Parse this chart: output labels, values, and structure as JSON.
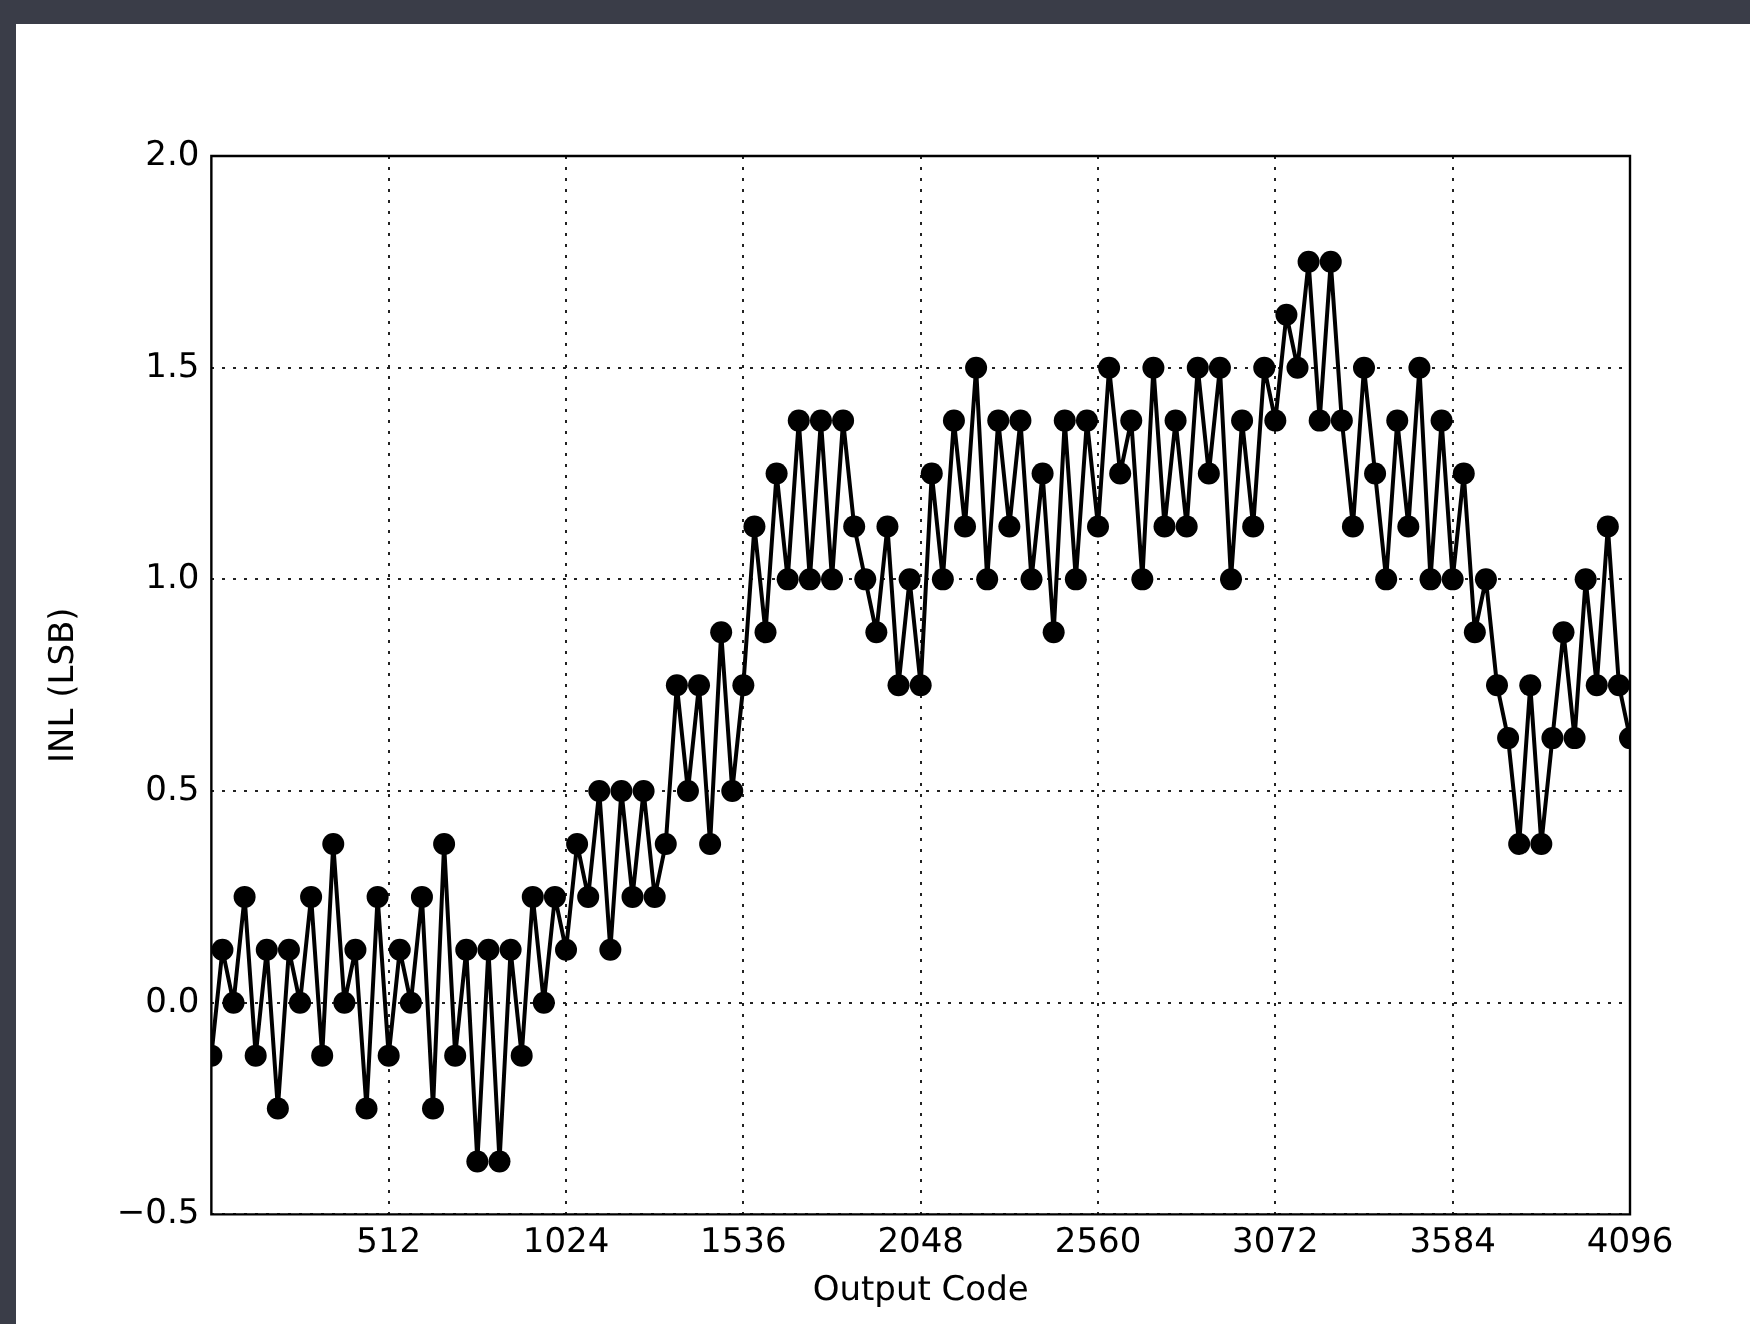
{
  "chart_data": {
    "type": "line",
    "xlabel": "Output Code",
    "ylabel": "INL (LSB)",
    "x": [
      0,
      32,
      64,
      96,
      128,
      160,
      192,
      224,
      256,
      288,
      320,
      352,
      384,
      416,
      448,
      480,
      512,
      544,
      576,
      608,
      640,
      672,
      704,
      736,
      768,
      800,
      832,
      864,
      896,
      928,
      960,
      992,
      1024,
      1056,
      1088,
      1120,
      1152,
      1184,
      1216,
      1248,
      1280,
      1312,
      1344,
      1376,
      1408,
      1440,
      1472,
      1504,
      1536,
      1568,
      1600,
      1632,
      1664,
      1696,
      1728,
      1760,
      1792,
      1824,
      1856,
      1888,
      1920,
      1952,
      1984,
      2016,
      2048,
      2080,
      2112,
      2144,
      2176,
      2208,
      2240,
      2272,
      2304,
      2336,
      2368,
      2400,
      2432,
      2464,
      2496,
      2528,
      2560,
      2592,
      2624,
      2656,
      2688,
      2720,
      2752,
      2784,
      2816,
      2848,
      2880,
      2912,
      2944,
      2976,
      3008,
      3040,
      3072,
      3104,
      3136,
      3168,
      3200,
      3232,
      3264,
      3296,
      3328,
      3360,
      3392,
      3424,
      3456,
      3488,
      3520,
      3552,
      3584,
      3616,
      3648,
      3680,
      3712,
      3744,
      3776,
      3808,
      3840,
      3872,
      3904,
      3936,
      3968,
      4000,
      4032,
      4064,
      4096
    ],
    "series": [
      {
        "color": "#000000",
        "values": [
          -0.125,
          0.125,
          0,
          0.25,
          -0.125,
          0.125,
          -0.25,
          0.125,
          0,
          0.25,
          -0.125,
          0.375,
          0,
          0.125,
          -0.25,
          0.25,
          -0.125,
          0.125,
          0,
          0.25,
          -0.25,
          0.375,
          -0.125,
          0.125,
          -0.375,
          0.125,
          -0.375,
          0.125,
          -0.125,
          0.25,
          0,
          0.25,
          0.125,
          0.375,
          0.25,
          0.5,
          0.125,
          0.5,
          0.25,
          0.5,
          0.25,
          0.375,
          0.75,
          0.5,
          0.75,
          0.375,
          0.875,
          0.5,
          0.75,
          1.125,
          0.875,
          1.25,
          1.0,
          1.375,
          1.0,
          1.375,
          1.0,
          1.375,
          1.125,
          1.0,
          0.875,
          1.125,
          0.75,
          1.0,
          0.75,
          1.25,
          1.0,
          1.375,
          1.125,
          1.5,
          1.0,
          1.375,
          1.125,
          1.375,
          1.0,
          1.25,
          0.875,
          1.375,
          1.0,
          1.375,
          1.125,
          1.5,
          1.25,
          1.375,
          1.0,
          1.5,
          1.125,
          1.375,
          1.125,
          1.5,
          1.25,
          1.5,
          1.0,
          1.375,
          1.125,
          1.5,
          1.375,
          1.625,
          1.5,
          1.75,
          1.375,
          1.75,
          1.375,
          1.125,
          1.5,
          1.25,
          1.0,
          1.375,
          1.125,
          1.5,
          1.0,
          1.375,
          1.0,
          1.25,
          0.875,
          1.0,
          0.75,
          0.625,
          0.375,
          0.75,
          0.375,
          0.625,
          0.875,
          0.625,
          1.0,
          0.75,
          1.125,
          0.75,
          0.625
        ]
      }
    ],
    "xlim": [
      0,
      4096
    ],
    "xticks": [
      512,
      1024,
      1536,
      2048,
      2560,
      3072,
      3584,
      4096
    ],
    "ylim": [
      -0.5,
      2.0
    ],
    "yticks": [
      {
        "value": -0.5,
        "label": "−0.5"
      },
      {
        "value": 0,
        "label": "0.0"
      },
      {
        "value": 0.5,
        "label": "0.5"
      },
      {
        "value": 1.0,
        "label": "1.0"
      },
      {
        "value": 1.5,
        "label": "1.5"
      },
      {
        "value": 2.0,
        "label": "2.0"
      }
    ],
    "grid": true,
    "marker": "circle",
    "line_style": "solid",
    "legend": false
  }
}
